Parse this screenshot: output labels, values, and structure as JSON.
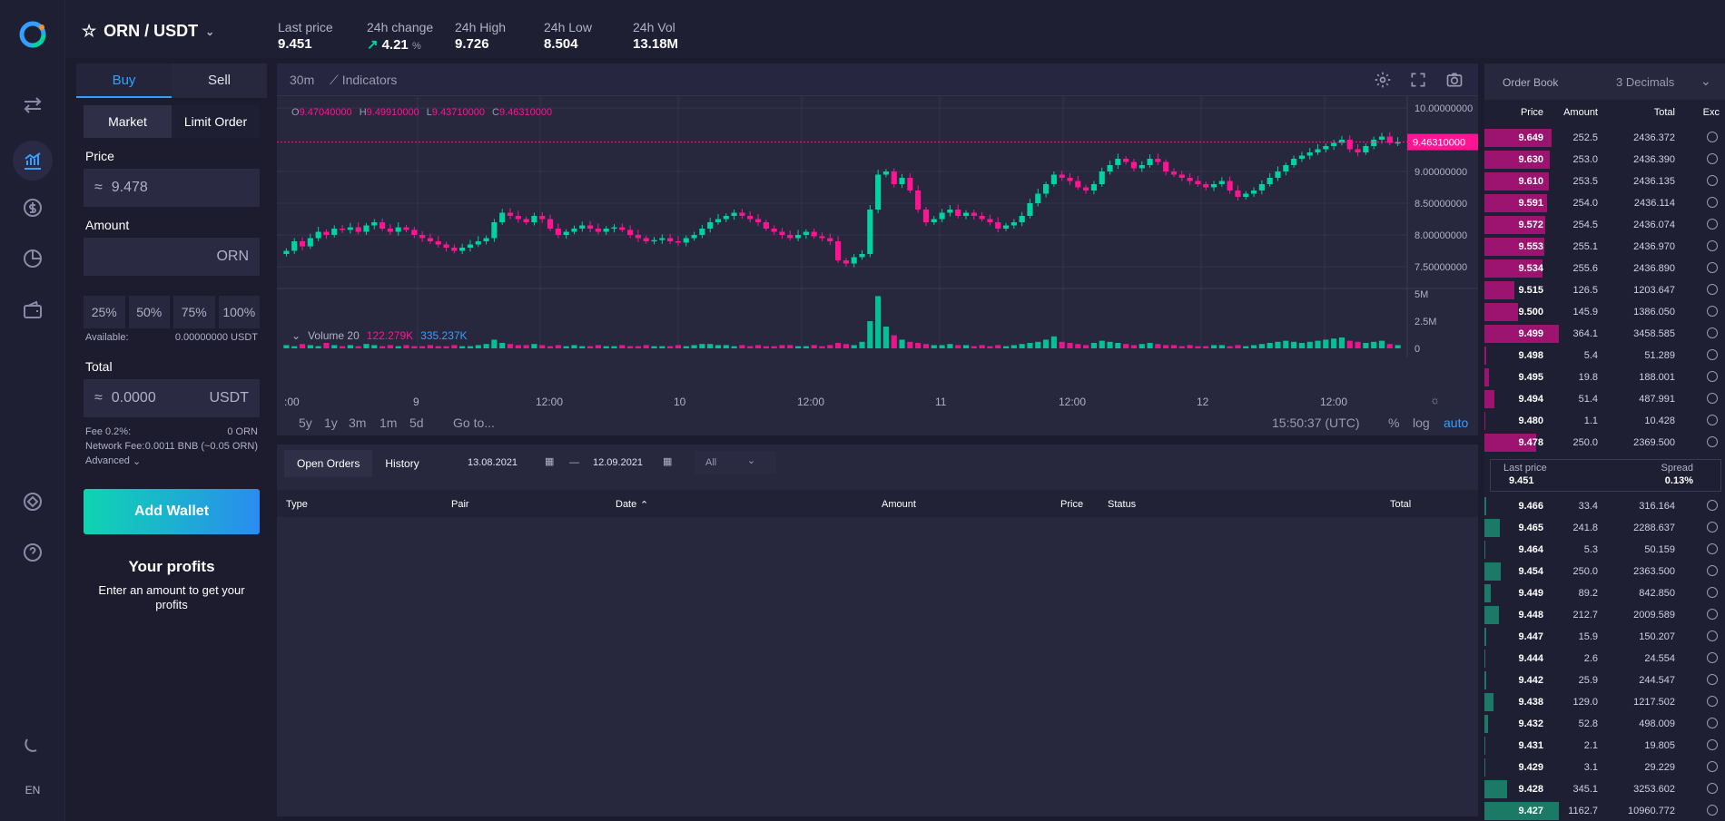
{
  "app": {
    "lang": "EN"
  },
  "header": {
    "pair": "ORN / USDT",
    "stats": [
      {
        "label": "Last price",
        "value": "9.451"
      },
      {
        "label": "24h change",
        "value": "4.21",
        "unit": "%"
      },
      {
        "label": "24h High",
        "value": "9.726"
      },
      {
        "label": "24h Low",
        "value": "8.504"
      },
      {
        "label": "24h Vol",
        "value": "13.18M"
      }
    ]
  },
  "form": {
    "buy": "Buy",
    "sell": "Sell",
    "market": "Market",
    "limit": "Limit Order",
    "price_label": "Price",
    "price_sym": "≈",
    "price_value": "9.478",
    "amount_label": "Amount",
    "amount_unit": "ORN",
    "pcts": [
      "25%",
      "50%",
      "75%",
      "100%"
    ],
    "available_label": "Available:",
    "available_value": "0.00000000 USDT",
    "total_label": "Total",
    "total_sym": "≈",
    "total_value": "0.0000",
    "total_unit": "USDT",
    "fee_label": "Fee 0.2%:",
    "fee_value": "0 ORN",
    "network_label": "Network Fee:",
    "network_value": "0.0011 BNB (~0.05 ORN)",
    "advanced": "Advanced",
    "add_wallet": "Add Wallet",
    "profits_title": "Your profits",
    "profits_sub": "Enter an amount to get your profits"
  },
  "chart_toolbar": {
    "interval": "30m",
    "indicators": "Indicators"
  },
  "chart_data": {
    "type": "candlestick",
    "ohlc": {
      "o": "9.47040000",
      "h": "9.49910000",
      "l": "9.43710000",
      "c": "9.46310000"
    },
    "price_axis": [
      "10.00000000",
      "9.00000000",
      "8.50000000",
      "8.00000000",
      "7.50000000"
    ],
    "current_price_label": "9.46310000",
    "ylim": [
      7.3,
      10.1
    ],
    "volume_label": "Volume 20",
    "volume_values": [
      "122.279K",
      "335.237K"
    ],
    "volume_axis": [
      "5M",
      "2.5M",
      "0"
    ],
    "x_ticks": [
      ":00",
      "9",
      "12:00",
      "10",
      "12:00",
      "11",
      "12:00",
      "12",
      "12:00"
    ],
    "closes": [
      7.75,
      7.9,
      7.82,
      7.95,
      8.05,
      8.0,
      8.1,
      8.08,
      8.12,
      8.05,
      8.15,
      8.2,
      8.1,
      8.05,
      8.12,
      8.08,
      8.0,
      7.95,
      7.9,
      7.85,
      7.8,
      7.75,
      7.8,
      7.85,
      7.9,
      7.95,
      8.2,
      8.35,
      8.3,
      8.25,
      8.2,
      8.3,
      8.25,
      8.1,
      8.0,
      8.05,
      8.1,
      8.15,
      8.1,
      8.05,
      8.1,
      8.12,
      8.08,
      8.0,
      7.95,
      7.9,
      7.92,
      7.95,
      7.9,
      7.88,
      7.95,
      8.0,
      8.1,
      8.2,
      8.25,
      8.3,
      8.35,
      8.3,
      8.25,
      8.2,
      8.1,
      8.05,
      8.0,
      7.95,
      8.0,
      8.05,
      7.98,
      7.95,
      7.9,
      7.6,
      7.55,
      7.65,
      7.7,
      8.4,
      8.95,
      9.0,
      8.8,
      8.9,
      8.7,
      8.4,
      8.2,
      8.25,
      8.35,
      8.4,
      8.3,
      8.35,
      8.3,
      8.25,
      8.2,
      8.1,
      8.15,
      8.2,
      8.3,
      8.5,
      8.65,
      8.8,
      8.95,
      8.9,
      8.85,
      8.75,
      8.7,
      8.8,
      9.0,
      9.1,
      9.2,
      9.15,
      9.05,
      9.1,
      9.2,
      9.15,
      9.0,
      8.95,
      8.9,
      8.85,
      8.8,
      8.75,
      8.8,
      8.85,
      8.7,
      8.6,
      8.65,
      8.7,
      8.8,
      8.9,
      9.0,
      9.1,
      9.2,
      9.25,
      9.3,
      9.35,
      9.4,
      9.45,
      9.5,
      9.35,
      9.3,
      9.4,
      9.5,
      9.55,
      9.45,
      9.46
    ],
    "volumes": [
      0.3,
      0.2,
      0.4,
      0.3,
      0.2,
      0.5,
      0.3,
      0.2,
      0.3,
      0.2,
      0.4,
      0.3,
      0.2,
      0.3,
      0.2,
      0.3,
      0.2,
      0.2,
      0.3,
      0.2,
      0.2,
      0.3,
      0.2,
      0.2,
      0.3,
      0.4,
      0.8,
      0.5,
      0.4,
      0.3,
      0.3,
      0.4,
      0.3,
      0.2,
      0.3,
      0.2,
      0.3,
      0.2,
      0.2,
      0.3,
      0.2,
      0.2,
      0.3,
      0.2,
      0.2,
      0.3,
      0.2,
      0.2,
      0.2,
      0.3,
      0.2,
      0.3,
      0.4,
      0.4,
      0.3,
      0.3,
      0.2,
      0.3,
      0.2,
      0.3,
      0.2,
      0.2,
      0.3,
      0.3,
      0.2,
      0.2,
      0.3,
      0.2,
      0.3,
      0.5,
      0.4,
      0.3,
      0.6,
      2.5,
      4.8,
      2.0,
      1.2,
      0.8,
      0.6,
      0.5,
      0.4,
      0.3,
      0.3,
      0.4,
      0.3,
      0.3,
      0.2,
      0.3,
      0.2,
      0.3,
      0.2,
      0.3,
      0.4,
      0.5,
      0.6,
      0.8,
      1.1,
      0.6,
      0.5,
      0.4,
      0.3,
      0.5,
      0.7,
      0.6,
      0.5,
      0.4,
      0.3,
      0.4,
      0.5,
      0.4,
      0.3,
      0.3,
      0.2,
      0.3,
      0.2,
      0.2,
      0.3,
      0.3,
      0.2,
      0.3,
      0.2,
      0.3,
      0.4,
      0.5,
      0.6,
      0.7,
      0.6,
      0.5,
      0.6,
      0.7,
      0.8,
      0.9,
      1.0,
      0.7,
      0.6,
      0.5,
      0.6,
      0.7,
      0.4,
      0.3
    ],
    "time_ranges": [
      "5y",
      "1y",
      "3m",
      "1m",
      "5d"
    ],
    "goto": "Go to...",
    "clock": "15:50:37 (UTC)",
    "scale_opts": [
      "%",
      "log",
      "auto"
    ],
    "up_color": "#00d2a0",
    "down_color": "#ff1493"
  },
  "orders": {
    "tabs": [
      "Open Orders",
      "History"
    ],
    "from": "13.08.2021",
    "to": "12.09.2021",
    "dash": "—",
    "filter": "All",
    "columns": [
      "Type",
      "Pair",
      "Date",
      "Amount",
      "Price",
      "Status",
      "Total"
    ]
  },
  "book": {
    "title": "Order Book",
    "decimals": "3 Decimals",
    "columns": [
      "Price",
      "Amount",
      "Total",
      "Exc"
    ],
    "asks": [
      {
        "price": "9.649",
        "amount": "252.5",
        "total": "2436.372",
        "depth": 0.9
      },
      {
        "price": "9.630",
        "amount": "253.0",
        "total": "2436.390",
        "depth": 0.88
      },
      {
        "price": "9.610",
        "amount": "253.5",
        "total": "2436.135",
        "depth": 0.86
      },
      {
        "price": "9.591",
        "amount": "254.0",
        "total": "2436.114",
        "depth": 0.84
      },
      {
        "price": "9.572",
        "amount": "254.5",
        "total": "2436.074",
        "depth": 0.82
      },
      {
        "price": "9.553",
        "amount": "255.1",
        "total": "2436.970",
        "depth": 0.8
      },
      {
        "price": "9.534",
        "amount": "255.6",
        "total": "2436.890",
        "depth": 0.78
      },
      {
        "price": "9.515",
        "amount": "126.5",
        "total": "1203.647",
        "depth": 0.4
      },
      {
        "price": "9.500",
        "amount": "145.9",
        "total": "1386.050",
        "depth": 0.45
      },
      {
        "price": "9.499",
        "amount": "364.1",
        "total": "3458.585",
        "depth": 1.0
      },
      {
        "price": "9.498",
        "amount": "5.4",
        "total": "51.289",
        "depth": 0.02
      },
      {
        "price": "9.495",
        "amount": "19.8",
        "total": "188.001",
        "depth": 0.06
      },
      {
        "price": "9.494",
        "amount": "51.4",
        "total": "487.991",
        "depth": 0.14
      },
      {
        "price": "9.480",
        "amount": "1.1",
        "total": "10.428",
        "depth": 0.01
      },
      {
        "price": "9.478",
        "amount": "250.0",
        "total": "2369.500",
        "depth": 0.7
      }
    ],
    "last_label": "Last price",
    "last_value": "9.451",
    "spread_label": "Spread",
    "spread_value": "0.13%",
    "bids": [
      {
        "price": "9.466",
        "amount": "33.4",
        "total": "316.164",
        "depth": 0.03
      },
      {
        "price": "9.465",
        "amount": "241.8",
        "total": "2288.637",
        "depth": 0.21
      },
      {
        "price": "9.464",
        "amount": "5.3",
        "total": "50.159",
        "depth": 0.01
      },
      {
        "price": "9.454",
        "amount": "250.0",
        "total": "2363.500",
        "depth": 0.22
      },
      {
        "price": "9.449",
        "amount": "89.2",
        "total": "842.850",
        "depth": 0.08
      },
      {
        "price": "9.448",
        "amount": "212.7",
        "total": "2009.589",
        "depth": 0.19
      },
      {
        "price": "9.447",
        "amount": "15.9",
        "total": "150.207",
        "depth": 0.02
      },
      {
        "price": "9.444",
        "amount": "2.6",
        "total": "24.554",
        "depth": 0.01
      },
      {
        "price": "9.442",
        "amount": "25.9",
        "total": "244.547",
        "depth": 0.03
      },
      {
        "price": "9.438",
        "amount": "129.0",
        "total": "1217.502",
        "depth": 0.12
      },
      {
        "price": "9.432",
        "amount": "52.8",
        "total": "498.009",
        "depth": 0.05
      },
      {
        "price": "9.431",
        "amount": "2.1",
        "total": "19.805",
        "depth": 0.01
      },
      {
        "price": "9.429",
        "amount": "3.1",
        "total": "29.229",
        "depth": 0.01
      },
      {
        "price": "9.428",
        "amount": "345.1",
        "total": "3253.602",
        "depth": 0.3
      },
      {
        "price": "9.427",
        "amount": "1162.7",
        "total": "10960.772",
        "depth": 1.0
      }
    ]
  }
}
